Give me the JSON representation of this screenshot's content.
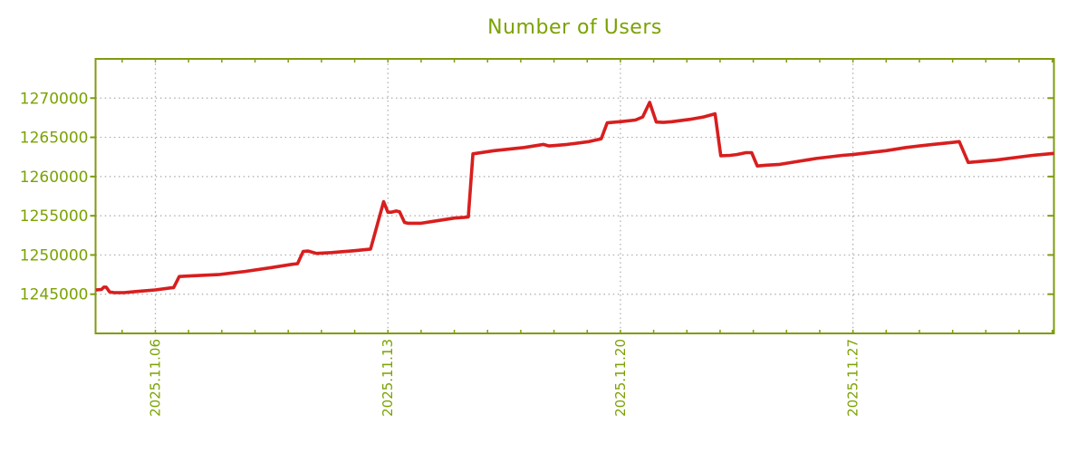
{
  "chart_data": {
    "type": "line",
    "title": "Number of Users",
    "xlabel": "",
    "ylabel": "",
    "legend": false,
    "grid": true,
    "colors": {
      "line": "#d81e1e",
      "axis_text": "#7ba202",
      "plot_border": "#7f9b10",
      "gridline": "#aaaaaa",
      "background": "#ffffff"
    },
    "x_axis": {
      "unit": "day-of-2025.11 (fractional; 6 = 2025.11.06 00:00, 33 = 2025.12.03)",
      "xlim": [
        4.2,
        33.05
      ],
      "major_ticks": [
        {
          "x": 6,
          "label": "2025.11.06"
        },
        {
          "x": 13,
          "label": "2025.11.13"
        },
        {
          "x": 20,
          "label": "2025.11.20"
        },
        {
          "x": 27,
          "label": "2025.11.27"
        }
      ],
      "minor_tick_start": 5,
      "minor_tick_end": 33,
      "minor_tick_step": 1,
      "label_rotation_deg": -90
    },
    "y_axis": {
      "ylim": [
        1240000,
        1275000
      ],
      "tick_values": [
        1245000,
        1250000,
        1255000,
        1260000,
        1265000,
        1270000
      ],
      "tick_labels": [
        "1245000",
        "1250000",
        "1255000",
        "1260000",
        "1265000",
        "1270000"
      ]
    },
    "series": [
      {
        "name": "Number of Users",
        "color": "#d81e1e",
        "points": [
          [
            4.21,
            1245550
          ],
          [
            4.38,
            1245600
          ],
          [
            4.45,
            1245900
          ],
          [
            4.52,
            1245900
          ],
          [
            4.62,
            1245300
          ],
          [
            4.75,
            1245200
          ],
          [
            5.05,
            1245200
          ],
          [
            5.45,
            1245350
          ],
          [
            6.0,
            1245550
          ],
          [
            6.45,
            1245800
          ],
          [
            6.55,
            1245850
          ],
          [
            6.72,
            1247250
          ],
          [
            7.1,
            1247350
          ],
          [
            7.9,
            1247500
          ],
          [
            8.7,
            1247900
          ],
          [
            9.5,
            1248400
          ],
          [
            10.1,
            1248800
          ],
          [
            10.28,
            1248900
          ],
          [
            10.45,
            1250450
          ],
          [
            10.6,
            1250500
          ],
          [
            10.85,
            1250200
          ],
          [
            11.3,
            1250300
          ],
          [
            12.0,
            1250550
          ],
          [
            12.48,
            1250750
          ],
          [
            12.87,
            1256800
          ],
          [
            13.0,
            1255450
          ],
          [
            13.1,
            1255450
          ],
          [
            13.25,
            1255600
          ],
          [
            13.35,
            1255500
          ],
          [
            13.5,
            1254150
          ],
          [
            13.6,
            1254050
          ],
          [
            14.0,
            1254050
          ],
          [
            14.45,
            1254350
          ],
          [
            15.0,
            1254700
          ],
          [
            15.3,
            1254800
          ],
          [
            15.42,
            1254850
          ],
          [
            15.56,
            1262900
          ],
          [
            16.2,
            1263300
          ],
          [
            17.1,
            1263700
          ],
          [
            17.55,
            1264000
          ],
          [
            17.68,
            1264100
          ],
          [
            17.85,
            1263900
          ],
          [
            18.0,
            1263950
          ],
          [
            18.4,
            1264100
          ],
          [
            19.05,
            1264450
          ],
          [
            19.42,
            1264800
          ],
          [
            19.6,
            1266850
          ],
          [
            19.75,
            1266900
          ],
          [
            20.0,
            1267000
          ],
          [
            20.45,
            1267200
          ],
          [
            20.67,
            1267600
          ],
          [
            20.88,
            1269450
          ],
          [
            21.08,
            1266950
          ],
          [
            21.3,
            1266900
          ],
          [
            21.55,
            1267000
          ],
          [
            22.1,
            1267300
          ],
          [
            22.5,
            1267600
          ],
          [
            22.85,
            1268000
          ],
          [
            23.02,
            1262650
          ],
          [
            23.3,
            1262700
          ],
          [
            23.5,
            1262800
          ],
          [
            23.78,
            1263050
          ],
          [
            23.95,
            1263050
          ],
          [
            24.12,
            1261350
          ],
          [
            24.4,
            1261450
          ],
          [
            24.8,
            1261550
          ],
          [
            25.9,
            1262300
          ],
          [
            26.68,
            1262700
          ],
          [
            27.0,
            1262800
          ],
          [
            28.0,
            1263300
          ],
          [
            28.6,
            1263700
          ],
          [
            29.4,
            1264100
          ],
          [
            30.0,
            1264350
          ],
          [
            30.2,
            1264450
          ],
          [
            30.47,
            1261800
          ],
          [
            31.3,
            1262100
          ],
          [
            32.4,
            1262700
          ],
          [
            33.05,
            1262950
          ]
        ]
      }
    ]
  }
}
